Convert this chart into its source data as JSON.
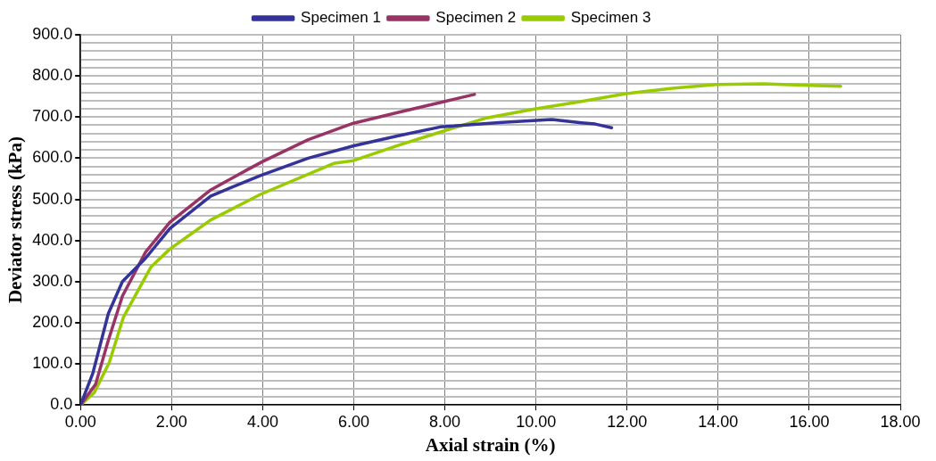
{
  "chart_data": {
    "type": "line",
    "xlabel": "Axial strain (%)",
    "ylabel": "Deviator stress (kPa)",
    "xlim": [
      0,
      18
    ],
    "ylim": [
      0,
      900
    ],
    "xticks": [
      {
        "value": 0,
        "label": "0.00"
      },
      {
        "value": 2,
        "label": "2.00"
      },
      {
        "value": 4,
        "label": "4.00"
      },
      {
        "value": 6,
        "label": "6.00"
      },
      {
        "value": 8,
        "label": "8.00"
      },
      {
        "value": 10,
        "label": "10.00"
      },
      {
        "value": 12,
        "label": "12.00"
      },
      {
        "value": 14,
        "label": "14.00"
      },
      {
        "value": 16,
        "label": "16.00"
      },
      {
        "value": 18,
        "label": "18.00"
      }
    ],
    "yticks": [
      {
        "value": 0,
        "label": "0.0"
      },
      {
        "value": 20,
        "label": null
      },
      {
        "value": 40,
        "label": null
      },
      {
        "value": 60,
        "label": null
      },
      {
        "value": 80,
        "label": null
      },
      {
        "value": 100,
        "label": "100.0"
      },
      {
        "value": 120,
        "label": null
      },
      {
        "value": 140,
        "label": null
      },
      {
        "value": 160,
        "label": null
      },
      {
        "value": 180,
        "label": null
      },
      {
        "value": 200,
        "label": "200.0"
      },
      {
        "value": 220,
        "label": null
      },
      {
        "value": 240,
        "label": null
      },
      {
        "value": 260,
        "label": null
      },
      {
        "value": 280,
        "label": null
      },
      {
        "value": 300,
        "label": "300.0"
      },
      {
        "value": 320,
        "label": null
      },
      {
        "value": 340,
        "label": null
      },
      {
        "value": 360,
        "label": null
      },
      {
        "value": 380,
        "label": null
      },
      {
        "value": 400,
        "label": "400.0"
      },
      {
        "value": 420,
        "label": null
      },
      {
        "value": 440,
        "label": null
      },
      {
        "value": 460,
        "label": null
      },
      {
        "value": 480,
        "label": null
      },
      {
        "value": 500,
        "label": "500.0"
      },
      {
        "value": 520,
        "label": null
      },
      {
        "value": 540,
        "label": null
      },
      {
        "value": 560,
        "label": null
      },
      {
        "value": 580,
        "label": null
      },
      {
        "value": 600,
        "label": "600.0"
      },
      {
        "value": 620,
        "label": null
      },
      {
        "value": 640,
        "label": null
      },
      {
        "value": 660,
        "label": null
      },
      {
        "value": 680,
        "label": null
      },
      {
        "value": 700,
        "label": "700.0"
      },
      {
        "value": 720,
        "label": null
      },
      {
        "value": 740,
        "label": null
      },
      {
        "value": 760,
        "label": null
      },
      {
        "value": 780,
        "label": null
      },
      {
        "value": 800,
        "label": "800.0"
      },
      {
        "value": 820,
        "label": null
      },
      {
        "value": 840,
        "label": null
      },
      {
        "value": 860,
        "label": null
      },
      {
        "value": 880,
        "label": null
      },
      {
        "value": 900,
        "label": "900.0"
      }
    ],
    "grid": true,
    "legend": "top",
    "marker": "none",
    "line_style": "solid",
    "series": [
      {
        "name": "Specimen 1",
        "color": "#333399",
        "x": [
          0,
          0.27,
          0.61,
          0.92,
          1.43,
          1.96,
          2.86,
          3.95,
          5,
          6,
          7,
          7.9,
          9.26,
          10.35,
          11,
          11.3,
          11.66
        ],
        "values": [
          0,
          77,
          222,
          300,
          357,
          429,
          508,
          558,
          600,
          630,
          655,
          676,
          687,
          694,
          686,
          683,
          674
        ]
      },
      {
        "name": "Specimen 2",
        "color": "#993366",
        "x": [
          0,
          0.33,
          0.61,
          0.92,
          1.43,
          1.96,
          2.86,
          3.68,
          4,
          5,
          5.99,
          7,
          8,
          8.65
        ],
        "values": [
          0,
          50,
          157,
          265,
          372,
          444,
          523,
          573,
          592,
          645,
          685,
          712,
          738,
          755
        ]
      },
      {
        "name": "Specimen 3",
        "color": "#99cc00",
        "x": [
          0,
          0.3,
          0.63,
          0.94,
          1.55,
          1.96,
          2.86,
          3.95,
          5.58,
          5.99,
          7,
          8,
          8.92,
          9.94,
          11,
          11.98,
          13,
          13.97,
          14.99,
          16,
          16.69
        ],
        "values": [
          0,
          30,
          103,
          213,
          336,
          379,
          450,
          512,
          588,
          594,
          632,
          667,
          698,
          719,
          738,
          757,
          770,
          779,
          781,
          777,
          775
        ]
      }
    ]
  }
}
